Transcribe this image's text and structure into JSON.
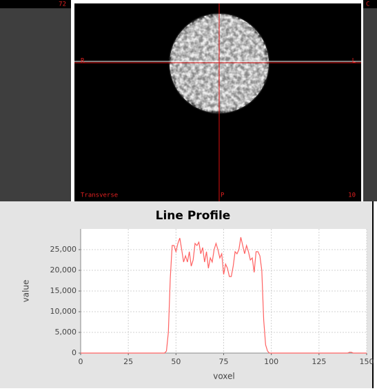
{
  "viewer": {
    "left_label": "72",
    "right_label": "C",
    "orientation_left": "R",
    "orientation_right": "L",
    "orientation_bottom": "P",
    "view_name": "Transverse",
    "slice": "10"
  },
  "chart_data": {
    "type": "line",
    "title": "Line Profile",
    "x_label": "voxel",
    "y_label": "value",
    "xlim": [
      0,
      150
    ],
    "xticks": [
      0,
      25,
      50,
      75,
      100,
      125,
      150
    ],
    "ylim": [
      0,
      30000
    ],
    "yticks": [
      0,
      {
        "value": 5000,
        "label": "5,000"
      },
      {
        "value": 10000,
        "label": "10,000"
      },
      {
        "value": 15000,
        "label": "15,000"
      },
      {
        "value": 20000,
        "label": "20,000"
      },
      {
        "value": 25000,
        "label": "25,000"
      }
    ],
    "grid": true,
    "series": [
      {
        "color": "#ff6060",
        "x": [
          0,
          44,
          45,
          46,
          47,
          48,
          49,
          50,
          51,
          52,
          53,
          54,
          55,
          56,
          57,
          58,
          59,
          60,
          61,
          62,
          63,
          64,
          65,
          66,
          67,
          68,
          69,
          70,
          71,
          72,
          73,
          74,
          75,
          76,
          77,
          78,
          79,
          80,
          81,
          82,
          83,
          84,
          85,
          86,
          87,
          88,
          89,
          90,
          91,
          92,
          93,
          94,
          95,
          96,
          97,
          98,
          99,
          140,
          141,
          142,
          143,
          150
        ],
        "values": [
          0,
          0,
          500,
          5000,
          18000,
          26000,
          26000,
          24500,
          26500,
          27800,
          25000,
          22000,
          23500,
          22000,
          24500,
          21000,
          22500,
          26500,
          26000,
          26800,
          24000,
          25500,
          22000,
          24500,
          20500,
          23000,
          22000,
          25000,
          26500,
          25000,
          23000,
          24000,
          19000,
          21500,
          20500,
          18500,
          18500,
          21000,
          24500,
          24000,
          25000,
          28000,
          26000,
          24000,
          26000,
          24500,
          22500,
          23000,
          19500,
          24500,
          24500,
          23500,
          20000,
          8000,
          2000,
          500,
          0,
          0,
          200,
          200,
          0,
          0
        ]
      }
    ]
  }
}
